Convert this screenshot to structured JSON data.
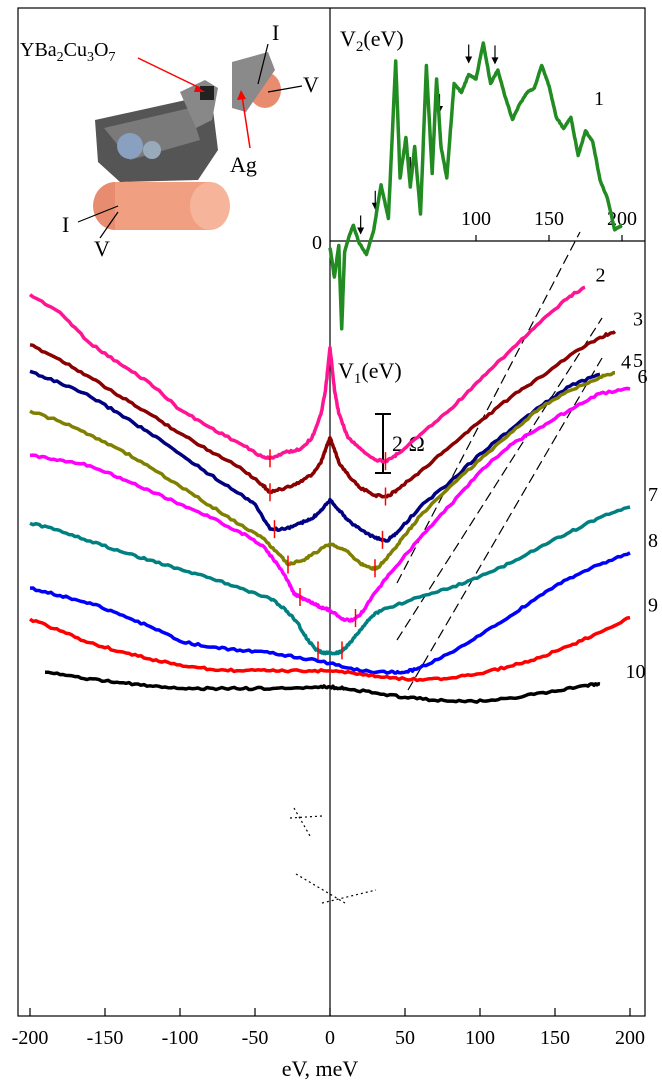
{
  "chart_data": {
    "type": "line",
    "xlabel": "eV, meV",
    "xlim": [
      -210,
      210
    ],
    "xticks": [
      -200,
      -150,
      -100,
      -50,
      0,
      50,
      100,
      150,
      200
    ],
    "ylabel_main": "V1(eV)",
    "scale_bar_label": "2 Ω",
    "grid": false,
    "series": [
      {
        "name": "2",
        "color": "#ff1493",
        "x": [
          -200,
          -180,
          -160,
          -140,
          -120,
          -100,
          -80,
          -60,
          -45,
          -40,
          -30,
          -20,
          -12,
          -6,
          -3,
          0,
          3,
          6,
          12,
          20,
          30,
          38,
          45,
          60,
          80,
          100,
          120,
          140,
          160,
          170
        ],
        "y": [
          4.25,
          3.65,
          2.6,
          1.9,
          1.25,
          0.35,
          -0.25,
          -0.8,
          -1.25,
          -1.3,
          -1.1,
          -1.0,
          -0.6,
          0.2,
          1.0,
          2.45,
          1.0,
          0.2,
          -0.6,
          -0.95,
          -1.35,
          -1.4,
          -1.15,
          -0.5,
          0.35,
          1.35,
          2.35,
          3.3,
          4.2,
          4.5
        ]
      },
      {
        "name": "3",
        "color": "#8b0000",
        "x": [
          -200,
          -180,
          -160,
          -140,
          -120,
          -100,
          -80,
          -60,
          -45,
          -40,
          -30,
          -20,
          -12,
          -6,
          -3,
          0,
          3,
          6,
          12,
          20,
          30,
          38,
          45,
          60,
          80,
          100,
          120,
          140,
          160,
          180,
          190
        ],
        "y": [
          2.55,
          2.05,
          1.45,
          0.8,
          0.2,
          -0.45,
          -1.05,
          -1.6,
          -2.2,
          -2.45,
          -2.3,
          -2.1,
          -1.85,
          -1.45,
          -1.0,
          -0.6,
          -1.0,
          -1.45,
          -1.85,
          -2.3,
          -2.55,
          -2.6,
          -2.35,
          -1.75,
          -0.9,
          -0.05,
          0.75,
          1.45,
          2.2,
          2.8,
          3.0
        ]
      },
      {
        "name": "4",
        "color": "#000080",
        "x": [
          -200,
          -180,
          -160,
          -140,
          -120,
          -100,
          -80,
          -60,
          -50,
          -40,
          -30,
          -20,
          -12,
          -6,
          0,
          6,
          12,
          20,
          30,
          38,
          45,
          60,
          80,
          100,
          120,
          140,
          160,
          180
        ],
        "y": [
          1.65,
          1.25,
          0.8,
          0.2,
          -0.45,
          -1.15,
          -1.85,
          -2.5,
          -2.85,
          -3.7,
          -3.7,
          -3.5,
          -3.35,
          -3.05,
          -2.7,
          -3.05,
          -3.4,
          -3.7,
          -4.0,
          -4.1,
          -3.8,
          -2.95,
          -2.1,
          -1.15,
          -0.35,
          0.45,
          1.15,
          1.55
        ]
      },
      {
        "name": "5",
        "color": "#808000",
        "x": [
          -200,
          -180,
          -160,
          -140,
          -120,
          -100,
          -80,
          -60,
          -45,
          -35,
          -28,
          -18,
          -10,
          0,
          10,
          20,
          28,
          32,
          40,
          50,
          60,
          80,
          100,
          120,
          140,
          160,
          180,
          190
        ],
        "y": [
          0.3,
          -0.05,
          -0.5,
          -1.0,
          -1.6,
          -2.25,
          -2.9,
          -3.55,
          -4.0,
          -4.5,
          -4.9,
          -4.75,
          -4.5,
          -4.2,
          -4.4,
          -4.85,
          -5.05,
          -5.0,
          -4.55,
          -3.9,
          -3.25,
          -2.25,
          -1.35,
          -0.45,
          0.4,
          1.0,
          1.45,
          1.6
        ]
      },
      {
        "name": "6",
        "color": "#ff00ff",
        "x": [
          -200,
          -180,
          -160,
          -140,
          -120,
          -100,
          -80,
          -60,
          -45,
          -35,
          -28,
          -24,
          -20,
          -16,
          -10,
          -6,
          0,
          8,
          15,
          22,
          30,
          40,
          60,
          80,
          100,
          120,
          140,
          160,
          180,
          200
        ],
        "y": [
          -1.2,
          -1.35,
          -1.55,
          -1.95,
          -2.4,
          -2.85,
          -3.3,
          -3.8,
          -4.25,
          -4.9,
          -5.45,
          -5.9,
          -6.0,
          -6.1,
          -6.25,
          -6.35,
          -6.45,
          -6.75,
          -6.8,
          -6.5,
          -5.85,
          -5.2,
          -4.0,
          -2.9,
          -1.75,
          -0.85,
          -0.25,
          0.35,
          0.9,
          1.05
        ]
      },
      {
        "name": "7",
        "color": "#008080",
        "x": [
          -200,
          -180,
          -160,
          -140,
          -120,
          -100,
          -80,
          -60,
          -40,
          -30,
          -22,
          -15,
          -10,
          -5,
          0,
          5,
          10,
          15,
          22,
          30,
          40,
          60,
          80,
          100,
          120,
          140,
          160,
          180,
          200
        ],
        "y": [
          -3.5,
          -3.75,
          -4.1,
          -4.45,
          -4.75,
          -5.05,
          -5.35,
          -5.7,
          -6.05,
          -6.4,
          -6.85,
          -7.45,
          -7.75,
          -7.9,
          -7.9,
          -7.9,
          -7.75,
          -7.45,
          -7.0,
          -6.55,
          -6.35,
          -6.0,
          -5.7,
          -5.3,
          -4.85,
          -4.3,
          -3.8,
          -3.3,
          -2.95
        ]
      },
      {
        "name": "8",
        "color": "#0000ff",
        "x": [
          -200,
          -180,
          -160,
          -140,
          -120,
          -100,
          -80,
          -60,
          -40,
          -20,
          0,
          20,
          40,
          50,
          60,
          80,
          100,
          120,
          140,
          160,
          180,
          200
        ],
        "y": [
          -5.7,
          -5.95,
          -6.2,
          -6.6,
          -7.0,
          -7.5,
          -7.7,
          -7.8,
          -7.9,
          -8.05,
          -8.25,
          -8.5,
          -8.55,
          -8.55,
          -8.4,
          -7.9,
          -7.3,
          -6.65,
          -5.95,
          -5.35,
          -4.9,
          -4.5
        ]
      },
      {
        "name": "9",
        "color": "#ff0000",
        "x": [
          -200,
          -180,
          -160,
          -140,
          -120,
          -100,
          -80,
          -60,
          -40,
          -20,
          0,
          20,
          40,
          60,
          80,
          100,
          120,
          140,
          160,
          180,
          200
        ],
        "y": [
          -6.75,
          -7.15,
          -7.55,
          -7.85,
          -8.1,
          -8.3,
          -8.45,
          -8.5,
          -8.5,
          -8.5,
          -8.5,
          -8.6,
          -8.75,
          -8.8,
          -8.75,
          -8.6,
          -8.35,
          -8.05,
          -7.65,
          -7.2,
          -6.7
        ]
      },
      {
        "name": "10",
        "color": "#000000",
        "x": [
          -190,
          -170,
          -150,
          -130,
          -110,
          -90,
          -70,
          -50,
          -30,
          -10,
          0,
          10,
          30,
          50,
          70,
          90,
          110,
          130,
          150,
          170,
          180
        ],
        "y": [
          -8.55,
          -8.7,
          -8.85,
          -8.95,
          -9.05,
          -9.1,
          -9.1,
          -9.1,
          -9.1,
          -9.05,
          -9.05,
          -9.1,
          -9.25,
          -9.4,
          -9.5,
          -9.55,
          -9.5,
          -9.35,
          -9.2,
          -9.0,
          -8.95
        ]
      }
    ],
    "series_labels_x": [
      165,
      190,
      182,
      190,
      193,
      200,
      200,
      200,
      185
    ],
    "red_markers": {
      "2": [
        -40,
        37
      ],
      "3": [
        -40,
        37
      ],
      "4": [
        -37,
        35
      ],
      "5": [
        -28,
        30
      ],
      "6": [
        -20,
        17
      ],
      "7": [
        -8,
        8
      ]
    },
    "inset": {
      "title": "V2(eV)",
      "xticks": [
        100,
        150,
        200
      ],
      "zero_label": "0",
      "series_name": "1",
      "color": "#228b22",
      "x": [
        0,
        3,
        6,
        8,
        10,
        13,
        16,
        20,
        25,
        30,
        35,
        40,
        45,
        48,
        52,
        55,
        58,
        62,
        66,
        70,
        73,
        76,
        80,
        85,
        90,
        95,
        100,
        105,
        110,
        115,
        120,
        125,
        130,
        135,
        140,
        145,
        150,
        155,
        160,
        165,
        170,
        175,
        180,
        185,
        190,
        195,
        200
      ],
      "y": [
        -0.15,
        -0.8,
        -0.1,
        -1.95,
        -0.25,
        0.1,
        0.35,
        -0.05,
        -0.3,
        0.25,
        1.25,
        0.5,
        4.0,
        1.4,
        2.3,
        1.2,
        2.1,
        0.6,
        3.9,
        1.5,
        3.6,
        2.1,
        1.4,
        3.5,
        3.3,
        3.7,
        3.6,
        4.4,
        3.5,
        3.8,
        3.2,
        2.7,
        3.05,
        3.3,
        3.4,
        3.9,
        3.45,
        2.75,
        2.5,
        2.75,
        1.9,
        2.45,
        2.2,
        1.35,
        0.95,
        0.25,
        0.35
      ],
      "arrows_x": [
        21,
        31,
        55,
        75,
        95,
        113
      ]
    },
    "schematic": {
      "material_label": "YBa2Cu3O7",
      "contact_label": "Ag",
      "lead_labels": [
        "I",
        "V",
        "I",
        "V"
      ]
    }
  }
}
